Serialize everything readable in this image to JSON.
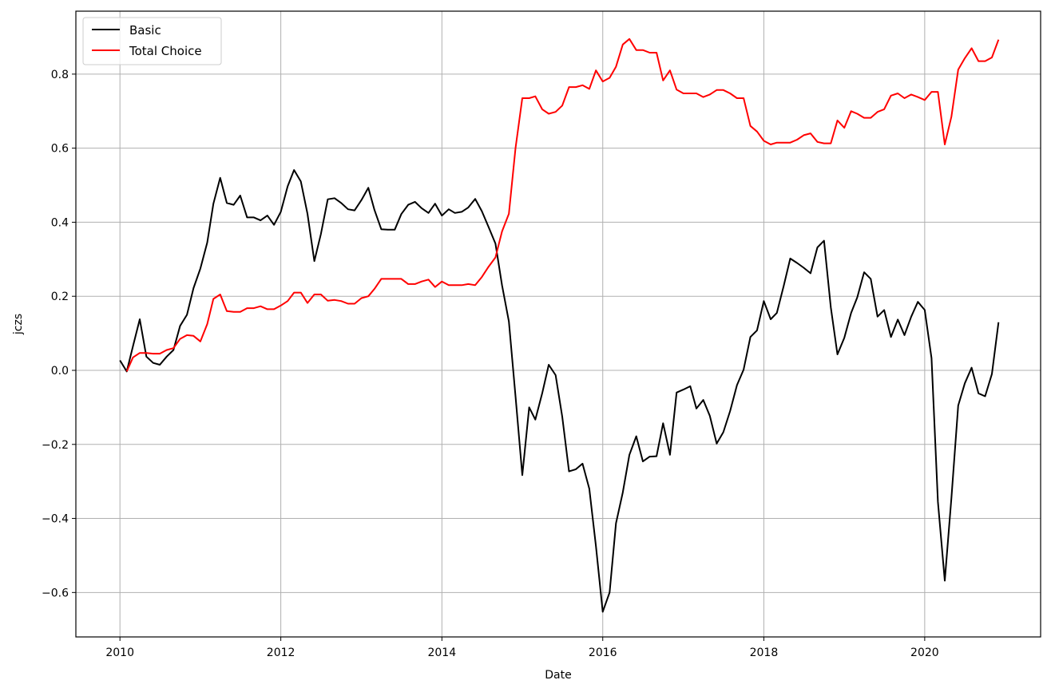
{
  "chart_data": {
    "type": "line",
    "title": "",
    "xlabel": "Date",
    "ylabel": "jczs",
    "xlim": [
      "2009-06-15",
      "2021-06-10"
    ],
    "ylim": [
      -0.72,
      0.97
    ],
    "grid": true,
    "legend_position": "top-left",
    "x_ticks": [
      {
        "date": "2010-01-01",
        "label": "2010"
      },
      {
        "date": "2012-01-01",
        "label": "2012"
      },
      {
        "date": "2014-01-01",
        "label": "2014"
      },
      {
        "date": "2016-01-01",
        "label": "2016"
      },
      {
        "date": "2018-01-01",
        "label": "2018"
      },
      {
        "date": "2020-01-01",
        "label": "2020"
      }
    ],
    "y_ticks": [
      {
        "value": 0.8,
        "label": "0.8"
      },
      {
        "value": 0.6,
        "label": "0.6"
      },
      {
        "value": 0.4,
        "label": "0.4"
      },
      {
        "value": 0.2,
        "label": "0.2"
      },
      {
        "value": 0.0,
        "label": "0.0"
      },
      {
        "value": -0.2,
        "label": "−0.2"
      },
      {
        "value": -0.4,
        "label": "−0.4"
      },
      {
        "value": -0.6,
        "label": "−0.6"
      }
    ],
    "series": [
      {
        "name": "Basic",
        "color": "#000000",
        "points": [
          [
            "2010-01-01",
            0.027
          ],
          [
            "2010-02-01",
            -0.003
          ],
          [
            "2010-03-01",
            0.065
          ],
          [
            "2010-04-01",
            0.138
          ],
          [
            "2010-05-01",
            0.037
          ],
          [
            "2010-06-01",
            0.02
          ],
          [
            "2010-07-01",
            0.015
          ],
          [
            "2010-08-01",
            0.037
          ],
          [
            "2010-09-01",
            0.055
          ],
          [
            "2010-10-01",
            0.12
          ],
          [
            "2010-11-01",
            0.15
          ],
          [
            "2010-12-01",
            0.222
          ],
          [
            "2011-01-01",
            0.275
          ],
          [
            "2011-02-01",
            0.345
          ],
          [
            "2011-03-01",
            0.45
          ],
          [
            "2011-04-01",
            0.52
          ],
          [
            "2011-05-01",
            0.452
          ],
          [
            "2011-06-01",
            0.447
          ],
          [
            "2011-07-01",
            0.472
          ],
          [
            "2011-08-01",
            0.413
          ],
          [
            "2011-09-01",
            0.413
          ],
          [
            "2011-10-01",
            0.405
          ],
          [
            "2011-11-01",
            0.418
          ],
          [
            "2011-12-01",
            0.393
          ],
          [
            "2012-01-01",
            0.428
          ],
          [
            "2012-02-01",
            0.497
          ],
          [
            "2012-03-01",
            0.541
          ],
          [
            "2012-04-01",
            0.51
          ],
          [
            "2012-05-01",
            0.423
          ],
          [
            "2012-06-01",
            0.295
          ],
          [
            "2012-07-01",
            0.368
          ],
          [
            "2012-08-01",
            0.462
          ],
          [
            "2012-09-01",
            0.465
          ],
          [
            "2012-10-01",
            0.452
          ],
          [
            "2012-11-01",
            0.435
          ],
          [
            "2012-12-01",
            0.432
          ],
          [
            "2013-01-01",
            0.46
          ],
          [
            "2013-02-01",
            0.493
          ],
          [
            "2013-03-01",
            0.433
          ],
          [
            "2013-04-01",
            0.381
          ],
          [
            "2013-05-01",
            0.38
          ],
          [
            "2013-06-01",
            0.38
          ],
          [
            "2013-07-01",
            0.422
          ],
          [
            "2013-08-01",
            0.447
          ],
          [
            "2013-09-01",
            0.455
          ],
          [
            "2013-10-01",
            0.438
          ],
          [
            "2013-11-01",
            0.425
          ],
          [
            "2013-12-01",
            0.45
          ],
          [
            "2014-01-01",
            0.418
          ],
          [
            "2014-02-01",
            0.435
          ],
          [
            "2014-03-01",
            0.425
          ],
          [
            "2014-04-01",
            0.428
          ],
          [
            "2014-05-01",
            0.44
          ],
          [
            "2014-06-01",
            0.463
          ],
          [
            "2014-07-01",
            0.43
          ],
          [
            "2014-08-01",
            0.387
          ],
          [
            "2014-09-01",
            0.342
          ],
          [
            "2014-10-01",
            0.23
          ],
          [
            "2014-11-01",
            0.132
          ],
          [
            "2014-12-01",
            -0.07
          ],
          [
            "2015-01-01",
            -0.283
          ],
          [
            "2015-02-01",
            -0.1
          ],
          [
            "2015-03-01",
            -0.133
          ],
          [
            "2015-04-01",
            -0.062
          ],
          [
            "2015-05-01",
            0.015
          ],
          [
            "2015-06-01",
            -0.013
          ],
          [
            "2015-07-01",
            -0.125
          ],
          [
            "2015-08-01",
            -0.273
          ],
          [
            "2015-09-01",
            -0.267
          ],
          [
            "2015-10-01",
            -0.252
          ],
          [
            "2015-11-01",
            -0.32
          ],
          [
            "2015-12-01",
            -0.475
          ],
          [
            "2016-01-01",
            -0.652
          ],
          [
            "2016-02-01",
            -0.6
          ],
          [
            "2016-03-01",
            -0.413
          ],
          [
            "2016-04-01",
            -0.33
          ],
          [
            "2016-05-01",
            -0.228
          ],
          [
            "2016-06-01",
            -0.178
          ],
          [
            "2016-07-01",
            -0.246
          ],
          [
            "2016-08-01",
            -0.233
          ],
          [
            "2016-09-01",
            -0.232
          ],
          [
            "2016-10-01",
            -0.143
          ],
          [
            "2016-11-01",
            -0.228
          ],
          [
            "2016-12-01",
            -0.06
          ],
          [
            "2017-01-01",
            -0.052
          ],
          [
            "2017-02-01",
            -0.043
          ],
          [
            "2017-03-01",
            -0.103
          ],
          [
            "2017-04-01",
            -0.08
          ],
          [
            "2017-05-01",
            -0.123
          ],
          [
            "2017-06-01",
            -0.198
          ],
          [
            "2017-07-01",
            -0.167
          ],
          [
            "2017-08-01",
            -0.11
          ],
          [
            "2017-09-01",
            -0.04
          ],
          [
            "2017-10-01",
            0.002
          ],
          [
            "2017-11-01",
            0.09
          ],
          [
            "2017-12-01",
            0.108
          ],
          [
            "2018-01-01",
            0.187
          ],
          [
            "2018-02-01",
            0.138
          ],
          [
            "2018-03-01",
            0.155
          ],
          [
            "2018-04-01",
            0.228
          ],
          [
            "2018-05-01",
            0.302
          ],
          [
            "2018-06-01",
            0.29
          ],
          [
            "2018-07-01",
            0.277
          ],
          [
            "2018-08-01",
            0.262
          ],
          [
            "2018-09-01",
            0.332
          ],
          [
            "2018-10-01",
            0.35
          ],
          [
            "2018-11-01",
            0.17
          ],
          [
            "2018-12-01",
            0.043
          ],
          [
            "2019-01-01",
            0.088
          ],
          [
            "2019-02-01",
            0.155
          ],
          [
            "2019-03-01",
            0.197
          ],
          [
            "2019-04-01",
            0.265
          ],
          [
            "2019-05-01",
            0.247
          ],
          [
            "2019-06-01",
            0.145
          ],
          [
            "2019-07-01",
            0.163
          ],
          [
            "2019-08-01",
            0.09
          ],
          [
            "2019-09-01",
            0.137
          ],
          [
            "2019-10-01",
            0.095
          ],
          [
            "2019-11-01",
            0.145
          ],
          [
            "2019-12-01",
            0.185
          ],
          [
            "2020-01-01",
            0.163
          ],
          [
            "2020-02-01",
            0.033
          ],
          [
            "2020-03-01",
            -0.355
          ],
          [
            "2020-04-01",
            -0.568
          ],
          [
            "2020-05-01",
            -0.345
          ],
          [
            "2020-06-01",
            -0.095
          ],
          [
            "2020-07-01",
            -0.035
          ],
          [
            "2020-08-01",
            0.007
          ],
          [
            "2020-09-01",
            -0.062
          ],
          [
            "2020-10-01",
            -0.07
          ],
          [
            "2020-11-01",
            -0.01
          ],
          [
            "2020-12-01",
            0.13
          ]
        ]
      },
      {
        "name": "Total Choice",
        "color": "#ff0000",
        "points": [
          [
            "2010-02-01",
            -0.003
          ],
          [
            "2010-03-01",
            0.035
          ],
          [
            "2010-04-01",
            0.047
          ],
          [
            "2010-05-01",
            0.047
          ],
          [
            "2010-06-01",
            0.045
          ],
          [
            "2010-07-01",
            0.045
          ],
          [
            "2010-08-01",
            0.055
          ],
          [
            "2010-09-01",
            0.06
          ],
          [
            "2010-10-01",
            0.085
          ],
          [
            "2010-11-01",
            0.095
          ],
          [
            "2010-12-01",
            0.093
          ],
          [
            "2011-01-01",
            0.078
          ],
          [
            "2011-02-01",
            0.125
          ],
          [
            "2011-03-01",
            0.193
          ],
          [
            "2011-04-01",
            0.205
          ],
          [
            "2011-05-01",
            0.16
          ],
          [
            "2011-06-01",
            0.158
          ],
          [
            "2011-07-01",
            0.158
          ],
          [
            "2011-08-01",
            0.168
          ],
          [
            "2011-09-01",
            0.168
          ],
          [
            "2011-10-01",
            0.173
          ],
          [
            "2011-11-01",
            0.165
          ],
          [
            "2011-12-01",
            0.165
          ],
          [
            "2012-01-01",
            0.175
          ],
          [
            "2012-02-01",
            0.187
          ],
          [
            "2012-03-01",
            0.21
          ],
          [
            "2012-04-01",
            0.21
          ],
          [
            "2012-05-01",
            0.182
          ],
          [
            "2012-06-01",
            0.205
          ],
          [
            "2012-07-01",
            0.205
          ],
          [
            "2012-08-01",
            0.188
          ],
          [
            "2012-09-01",
            0.19
          ],
          [
            "2012-10-01",
            0.187
          ],
          [
            "2012-11-01",
            0.18
          ],
          [
            "2012-12-01",
            0.18
          ],
          [
            "2013-01-01",
            0.195
          ],
          [
            "2013-02-01",
            0.2
          ],
          [
            "2013-03-01",
            0.22
          ],
          [
            "2013-04-01",
            0.247
          ],
          [
            "2013-05-01",
            0.247
          ],
          [
            "2013-06-01",
            0.247
          ],
          [
            "2013-07-01",
            0.247
          ],
          [
            "2013-08-01",
            0.233
          ],
          [
            "2013-09-01",
            0.233
          ],
          [
            "2013-10-01",
            0.24
          ],
          [
            "2013-11-01",
            0.245
          ],
          [
            "2013-12-01",
            0.225
          ],
          [
            "2014-01-01",
            0.24
          ],
          [
            "2014-02-01",
            0.23
          ],
          [
            "2014-03-01",
            0.23
          ],
          [
            "2014-04-01",
            0.23
          ],
          [
            "2014-05-01",
            0.233
          ],
          [
            "2014-06-01",
            0.23
          ],
          [
            "2014-07-01",
            0.252
          ],
          [
            "2014-08-01",
            0.28
          ],
          [
            "2014-09-01",
            0.305
          ],
          [
            "2014-10-01",
            0.375
          ],
          [
            "2014-11-01",
            0.423
          ],
          [
            "2014-12-01",
            0.6
          ],
          [
            "2015-01-01",
            0.735
          ],
          [
            "2015-02-01",
            0.735
          ],
          [
            "2015-03-01",
            0.74
          ],
          [
            "2015-04-01",
            0.705
          ],
          [
            "2015-05-01",
            0.693
          ],
          [
            "2015-06-01",
            0.698
          ],
          [
            "2015-07-01",
            0.715
          ],
          [
            "2015-08-01",
            0.765
          ],
          [
            "2015-09-01",
            0.765
          ],
          [
            "2015-10-01",
            0.77
          ],
          [
            "2015-11-01",
            0.76
          ],
          [
            "2015-12-01",
            0.81
          ],
          [
            "2016-01-01",
            0.78
          ],
          [
            "2016-02-01",
            0.79
          ],
          [
            "2016-03-01",
            0.82
          ],
          [
            "2016-04-01",
            0.88
          ],
          [
            "2016-05-01",
            0.895
          ],
          [
            "2016-06-01",
            0.865
          ],
          [
            "2016-07-01",
            0.865
          ],
          [
            "2016-08-01",
            0.858
          ],
          [
            "2016-09-01",
            0.858
          ],
          [
            "2016-10-01",
            0.783
          ],
          [
            "2016-11-01",
            0.81
          ],
          [
            "2016-12-01",
            0.758
          ],
          [
            "2017-01-01",
            0.748
          ],
          [
            "2017-02-01",
            0.748
          ],
          [
            "2017-03-01",
            0.748
          ],
          [
            "2017-04-01",
            0.738
          ],
          [
            "2017-05-01",
            0.745
          ],
          [
            "2017-06-01",
            0.757
          ],
          [
            "2017-07-01",
            0.757
          ],
          [
            "2017-08-01",
            0.748
          ],
          [
            "2017-09-01",
            0.735
          ],
          [
            "2017-10-01",
            0.735
          ],
          [
            "2017-11-01",
            0.66
          ],
          [
            "2017-12-01",
            0.645
          ],
          [
            "2018-01-01",
            0.62
          ],
          [
            "2018-02-01",
            0.61
          ],
          [
            "2018-03-01",
            0.615
          ],
          [
            "2018-04-01",
            0.615
          ],
          [
            "2018-05-01",
            0.615
          ],
          [
            "2018-06-01",
            0.623
          ],
          [
            "2018-07-01",
            0.635
          ],
          [
            "2018-08-01",
            0.64
          ],
          [
            "2018-09-01",
            0.617
          ],
          [
            "2018-10-01",
            0.613
          ],
          [
            "2018-11-01",
            0.613
          ],
          [
            "2018-12-01",
            0.675
          ],
          [
            "2019-01-01",
            0.655
          ],
          [
            "2019-02-01",
            0.7
          ],
          [
            "2019-03-01",
            0.693
          ],
          [
            "2019-04-01",
            0.682
          ],
          [
            "2019-05-01",
            0.682
          ],
          [
            "2019-06-01",
            0.698
          ],
          [
            "2019-07-01",
            0.705
          ],
          [
            "2019-08-01",
            0.742
          ],
          [
            "2019-09-01",
            0.748
          ],
          [
            "2019-10-01",
            0.735
          ],
          [
            "2019-11-01",
            0.745
          ],
          [
            "2019-12-01",
            0.738
          ],
          [
            "2020-01-01",
            0.73
          ],
          [
            "2020-02-01",
            0.752
          ],
          [
            "2020-03-01",
            0.752
          ],
          [
            "2020-04-01",
            0.61
          ],
          [
            "2020-05-01",
            0.685
          ],
          [
            "2020-06-01",
            0.812
          ],
          [
            "2020-07-01",
            0.843
          ],
          [
            "2020-08-01",
            0.87
          ],
          [
            "2020-09-01",
            0.835
          ],
          [
            "2020-10-01",
            0.835
          ],
          [
            "2020-11-01",
            0.845
          ],
          [
            "2020-12-01",
            0.893
          ]
        ]
      }
    ]
  }
}
